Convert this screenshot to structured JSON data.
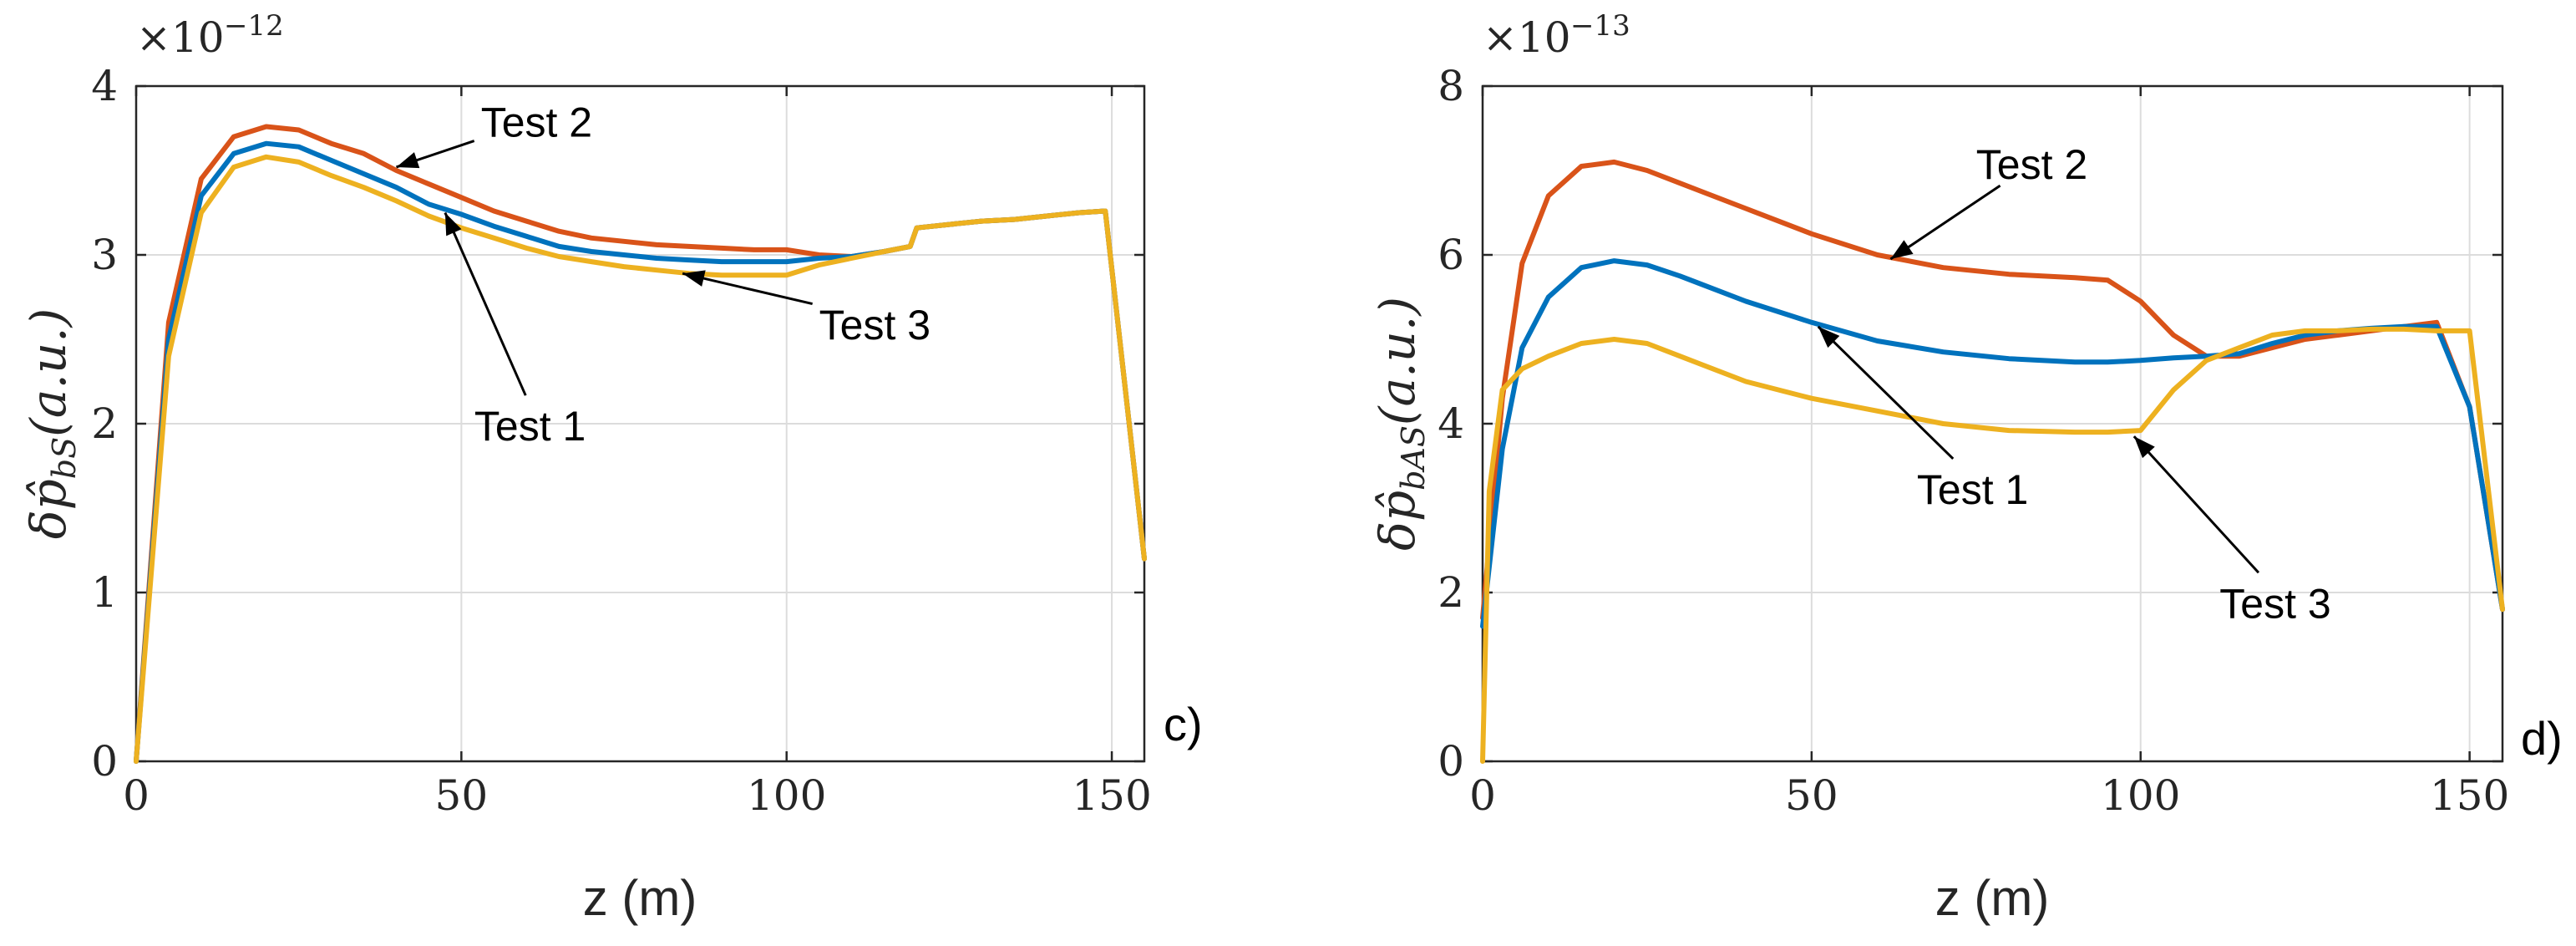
{
  "colors": {
    "Test 1": "#0072BD",
    "Test 2": "#D95319",
    "Test 3": "#EDB120"
  },
  "chart_data": [
    {
      "panel": "c)",
      "type": "line",
      "xlabel": "z (m)",
      "ylabel": "δp̂",
      "ylabel_sub": "bS",
      "ylabel_unit": "(a.u.)",
      "sci_base": "×10",
      "sci_exp": "−12",
      "xlim": [
        0,
        155
      ],
      "ylim": [
        0,
        4
      ],
      "xticks": [
        0,
        50,
        100,
        150
      ],
      "yticks": [
        0,
        1,
        2,
        3,
        4
      ],
      "grid": true,
      "series": [
        {
          "name": "Test 2",
          "x": [
            0,
            5,
            10,
            15,
            20,
            25,
            30,
            35,
            40,
            45,
            50,
            55,
            60,
            65,
            70,
            75,
            80,
            85,
            90,
            95,
            100,
            105,
            110,
            115,
            119,
            120,
            125,
            130,
            135,
            140,
            145,
            149,
            155
          ],
          "y": [
            0,
            2.6,
            3.45,
            3.7,
            3.76,
            3.74,
            3.66,
            3.6,
            3.5,
            3.42,
            3.34,
            3.26,
            3.2,
            3.14,
            3.1,
            3.08,
            3.06,
            3.05,
            3.04,
            3.03,
            3.03,
            3.0,
            2.99,
            3.02,
            3.05,
            3.16,
            3.18,
            3.2,
            3.21,
            3.23,
            3.25,
            3.26,
            1.2
          ]
        },
        {
          "name": "Test 1",
          "x": [
            0,
            5,
            10,
            15,
            20,
            25,
            30,
            35,
            40,
            45,
            50,
            55,
            60,
            65,
            70,
            75,
            80,
            85,
            90,
            95,
            100,
            105,
            110,
            115,
            119,
            120,
            125,
            130,
            135,
            140,
            145,
            149,
            155
          ],
          "y": [
            0,
            2.5,
            3.35,
            3.6,
            3.66,
            3.64,
            3.56,
            3.48,
            3.4,
            3.3,
            3.24,
            3.17,
            3.11,
            3.05,
            3.02,
            3.0,
            2.98,
            2.97,
            2.96,
            2.96,
            2.96,
            2.98,
            2.99,
            3.02,
            3.05,
            3.16,
            3.18,
            3.2,
            3.21,
            3.23,
            3.25,
            3.26,
            1.2
          ]
        },
        {
          "name": "Test 3",
          "x": [
            0,
            5,
            10,
            15,
            20,
            25,
            30,
            35,
            40,
            45,
            50,
            55,
            60,
            65,
            70,
            75,
            80,
            85,
            90,
            95,
            100,
            105,
            110,
            115,
            119,
            120,
            125,
            130,
            135,
            140,
            145,
            149,
            155
          ],
          "y": [
            0,
            2.4,
            3.25,
            3.52,
            3.58,
            3.55,
            3.47,
            3.4,
            3.32,
            3.23,
            3.16,
            3.1,
            3.04,
            2.99,
            2.96,
            2.93,
            2.91,
            2.89,
            2.88,
            2.88,
            2.88,
            2.94,
            2.98,
            3.02,
            3.05,
            3.16,
            3.18,
            3.2,
            3.21,
            3.23,
            3.25,
            3.26,
            1.2
          ]
        }
      ],
      "annotations": [
        {
          "text": "Test 2",
          "label_at": [
            53,
            3.7
          ],
          "arrow_to": [
            40,
            3.52
          ]
        },
        {
          "text": "Test 1",
          "label_at": [
            52,
            1.9
          ],
          "arrow_to": [
            47.5,
            3.25
          ]
        },
        {
          "text": "Test 3",
          "label_at": [
            105,
            2.5
          ],
          "arrow_to": [
            84,
            2.89
          ]
        }
      ]
    },
    {
      "panel": "d)",
      "type": "line",
      "xlabel": "z (m)",
      "ylabel": "δp̂",
      "ylabel_sub": "bAS",
      "ylabel_unit": "(a.u.)",
      "sci_base": "×10",
      "sci_exp": "−13",
      "xlim": [
        0,
        155
      ],
      "ylim": [
        0,
        8
      ],
      "xticks": [
        0,
        50,
        100,
        150
      ],
      "yticks": [
        0,
        2,
        4,
        6,
        8
      ],
      "grid": true,
      "series": [
        {
          "name": "Test 2",
          "x": [
            0,
            3,
            6,
            10,
            15,
            20,
            25,
            30,
            40,
            50,
            60,
            70,
            80,
            90,
            95,
            100,
            105,
            110,
            115,
            120,
            125,
            130,
            135,
            140,
            145,
            150,
            155
          ],
          "y": [
            1.7,
            4.3,
            5.9,
            6.7,
            7.05,
            7.1,
            7.0,
            6.85,
            6.55,
            6.25,
            6.0,
            5.85,
            5.77,
            5.73,
            5.7,
            5.45,
            5.05,
            4.8,
            4.8,
            4.9,
            5.0,
            5.05,
            5.1,
            5.15,
            5.2,
            4.2,
            1.8
          ]
        },
        {
          "name": "Test 1",
          "x": [
            0,
            3,
            6,
            10,
            15,
            20,
            25,
            30,
            40,
            50,
            60,
            70,
            80,
            90,
            95,
            100,
            105,
            110,
            115,
            120,
            125,
            130,
            135,
            140,
            145,
            150,
            155
          ],
          "y": [
            1.6,
            3.7,
            4.9,
            5.5,
            5.85,
            5.93,
            5.88,
            5.75,
            5.45,
            5.2,
            4.98,
            4.85,
            4.77,
            4.73,
            4.73,
            4.75,
            4.78,
            4.8,
            4.83,
            4.95,
            5.05,
            5.1,
            5.13,
            5.15,
            5.15,
            4.2,
            1.8
          ]
        },
        {
          "name": "Test 3",
          "x": [
            0,
            1,
            3,
            6,
            10,
            15,
            20,
            25,
            30,
            40,
            50,
            60,
            70,
            80,
            90,
            95,
            100,
            105,
            110,
            115,
            120,
            125,
            130,
            135,
            140,
            145,
            150,
            155
          ],
          "y": [
            0,
            3.2,
            4.4,
            4.65,
            4.8,
            4.95,
            5.0,
            4.95,
            4.8,
            4.5,
            4.3,
            4.15,
            4.0,
            3.92,
            3.9,
            3.9,
            3.92,
            4.4,
            4.75,
            4.9,
            5.05,
            5.1,
            5.1,
            5.12,
            5.12,
            5.1,
            5.1,
            1.8
          ]
        }
      ],
      "annotations": [
        {
          "text": "Test 2",
          "label_at": [
            75,
            6.9
          ],
          "arrow_to": [
            62,
            5.95
          ]
        },
        {
          "text": "Test 1",
          "label_at": [
            66,
            3.05
          ],
          "arrow_to": [
            51,
            5.15
          ]
        },
        {
          "text": "Test 3",
          "label_at": [
            112,
            1.7
          ],
          "arrow_to": [
            99,
            3.85
          ]
        }
      ]
    }
  ]
}
